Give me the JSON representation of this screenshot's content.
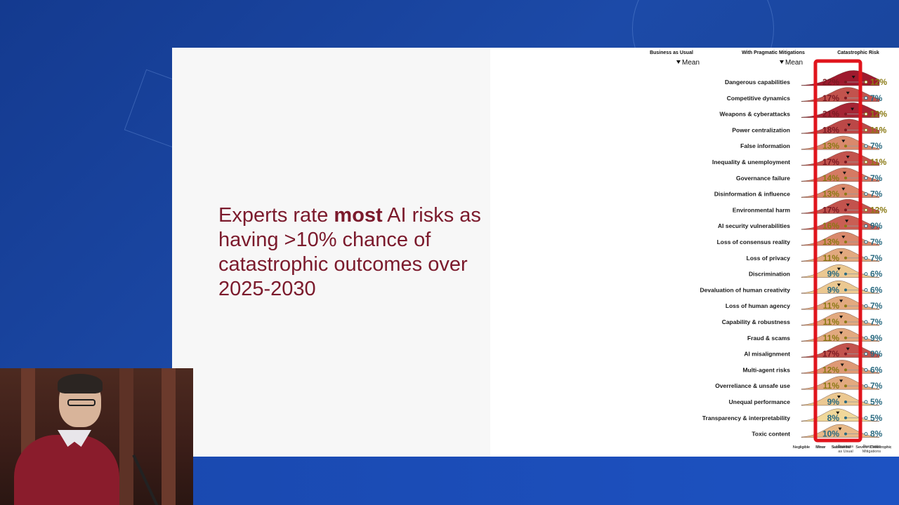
{
  "slide": {
    "headline_pre": "Experts rate ",
    "headline_bold": "most",
    "headline_post": " AI risks as having >10% chance of catastrophic outcomes over 2025-2030"
  },
  "chart_data": {
    "type": "ridgeline",
    "panels": [
      "Business as Usual",
      "With Pragmatic Mitigations",
      "Catastrophic Risk"
    ],
    "mean_label": "Mean",
    "x_ticks": [
      "Negligible",
      "Minor",
      "Substantial",
      "Severe",
      "Catastrophic"
    ],
    "risk_axis_labels": [
      "Business as Usual",
      "Pragmatic Mitigations"
    ],
    "categories": [
      "Dangerous capabilities",
      "Competitive dynamics",
      "Weapons & cyberattacks",
      "Power centralization",
      "False information",
      "Inequality & unemployment",
      "Governance failure",
      "Disinformation & influence",
      "Environmental harm",
      "AI security vulnerabilities",
      "Loss of consensus reality",
      "Loss of privacy",
      "Discrimination",
      "Devaluation of human creativity",
      "Loss of human agency",
      "Capability & robustness",
      "Fraud & scams",
      "AI misalignment",
      "Multi-agent risks",
      "Overreliance & unsafe use",
      "Unequal performance",
      "Transparency & interpretability",
      "Toxic content"
    ],
    "catastrophic_risk_bau": [
      22,
      17,
      21,
      18,
      13,
      17,
      14,
      13,
      17,
      16,
      13,
      11,
      9,
      9,
      11,
      11,
      11,
      17,
      12,
      11,
      9,
      8,
      10
    ],
    "catastrophic_risk_mitigated": [
      12,
      7,
      12,
      11,
      7,
      11,
      7,
      7,
      12,
      9,
      7,
      7,
      6,
      6,
      7,
      7,
      9,
      9,
      6,
      7,
      5,
      5,
      8
    ],
    "highlight_color": "#e0141c"
  }
}
